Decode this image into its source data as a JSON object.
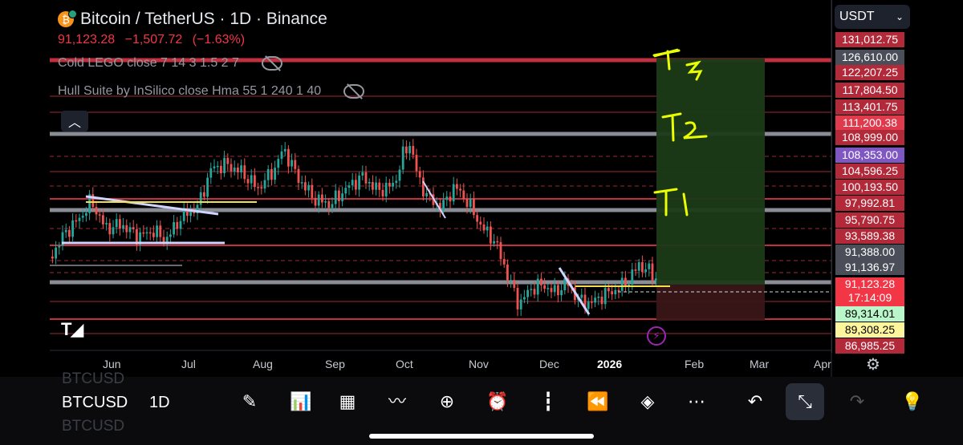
{
  "header": {
    "title": "Bitcoin / TetherUS · 1D · Binance",
    "price": "91,123.28",
    "change": "−1,507.72",
    "change_pct": "(−1.63%)"
  },
  "indicators": [
    {
      "label": "Cold LEGO close 7 14 3 1.5 2 7"
    },
    {
      "label": "Hull Suite by InSilico close Hma 55 1 240 1 40"
    }
  ],
  "currency_selector": {
    "value": "USDT"
  },
  "price_axis": [
    {
      "value": "131,012.75",
      "bg": "#b2293a"
    },
    {
      "value": "126,610.00",
      "bg": "#4a4e59"
    },
    {
      "value": "122,207.25",
      "bg": "#b2293a"
    },
    {
      "value": "117,804.50",
      "bg": "#b2293a"
    },
    {
      "value": "113,401.75",
      "bg": "#b2293a"
    },
    {
      "value": "111,200.38",
      "bg": "#e03a4d"
    },
    {
      "value": "108,999.00",
      "bg": "#b2293a"
    },
    {
      "value": "108,353.00",
      "bg": "#7e57c2"
    },
    {
      "value": "104,596.25",
      "bg": "#b2293a"
    },
    {
      "value": "100,193.50",
      "bg": "#b2293a"
    },
    {
      "value": "97,992.81",
      "bg": "#b2293a"
    },
    {
      "value": "95,790.75",
      "bg": "#b2293a"
    },
    {
      "value": "93,589.38",
      "bg": "#b2293a"
    },
    {
      "value": "91,388.00",
      "bg": "#4a4e59"
    },
    {
      "value": "91,136.97",
      "bg": "#4a4e59"
    },
    {
      "value": "91,123.28",
      "bg": "#f23645",
      "sub": "17:14:09"
    },
    {
      "value": "89,314.01",
      "bg": "#b9f6ca",
      "fg": "#000"
    },
    {
      "value": "89,308.25",
      "bg": "#fff59d",
      "fg": "#000"
    },
    {
      "value": "86,985.25",
      "bg": "#b2293a"
    }
  ],
  "time_axis": [
    "Jun",
    "Jul",
    "Aug",
    "Sep",
    "Oct",
    "Nov",
    "Dec",
    "2026",
    "Feb",
    "Mar",
    "Apr"
  ],
  "annotations": [
    "T3",
    "T2",
    "T1"
  ],
  "symbol": "BTCUSD",
  "timeframe": "1D",
  "toolbar_icons": [
    "pen-icon",
    "indicators-icon",
    "grid-icon",
    "patterns-icon",
    "plus-circle-icon",
    "alarm-icon",
    "candles-icon",
    "replay-icon",
    "layers-icon",
    "more-icon",
    "undo-icon",
    "fullscreen-exit-icon",
    "redo-icon",
    "lightbulb-icon"
  ],
  "colors": {
    "up": "#26a69a",
    "down": "#ef5350",
    "level": "#b2293a",
    "target_zone": "#1b3a17",
    "stop_zone": "#3a1618"
  }
}
